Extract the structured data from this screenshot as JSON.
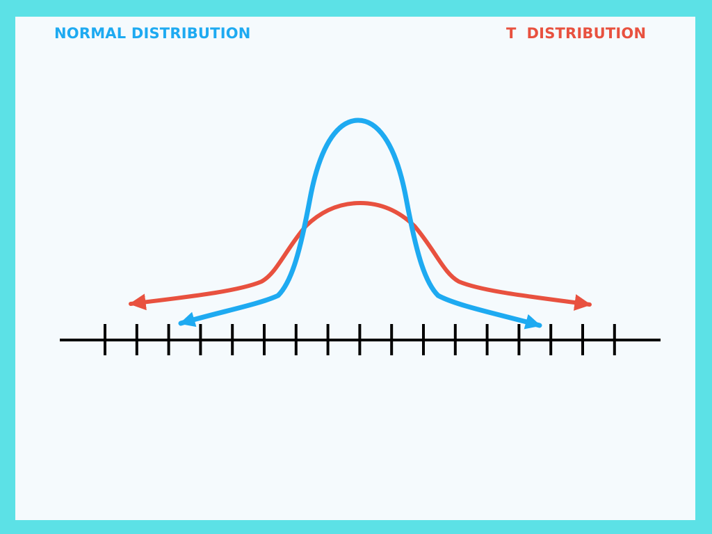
{
  "legend": {
    "normal_label": "NORMAL DISTRIBUTION",
    "t_label": "T  DISTRIBUTION"
  },
  "colors": {
    "frame": "#5ce1e6",
    "background": "#f5fafd",
    "normal": "#1eaaf1",
    "t": "#e8513f",
    "axis": "#000000"
  },
  "axis": {
    "tick_count": 17
  }
}
